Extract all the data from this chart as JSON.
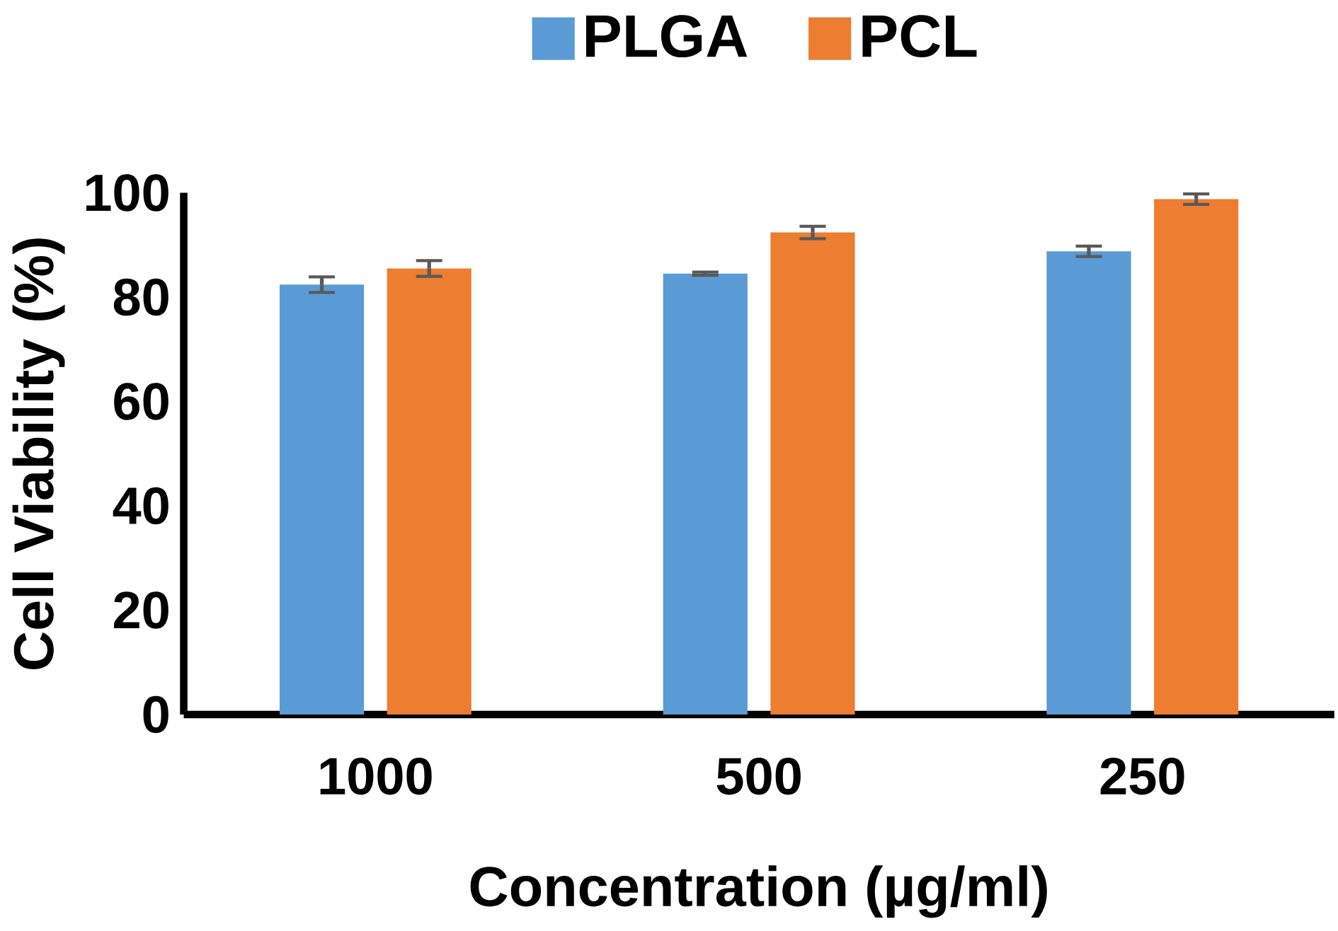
{
  "chart_data": {
    "type": "bar",
    "xlabel": "Concentration (µg/ml)",
    "ylabel": "Cell Viability (%)",
    "categories": [
      "1000",
      "500",
      "250"
    ],
    "series": [
      {
        "name": "PLGA",
        "color": "#5b9bd5",
        "values": [
          82.4,
          84.5,
          88.8
        ],
        "errors": [
          1.5,
          0.3,
          1.0
        ]
      },
      {
        "name": "PCL",
        "color": "#ed7d31",
        "values": [
          85.5,
          92.4,
          98.8
        ],
        "errors": [
          1.5,
          1.2,
          1.0
        ]
      }
    ],
    "ylim": [
      0,
      100
    ],
    "yticks": [
      0,
      20,
      40,
      60,
      80,
      100
    ],
    "grid": false,
    "legend": "top"
  }
}
